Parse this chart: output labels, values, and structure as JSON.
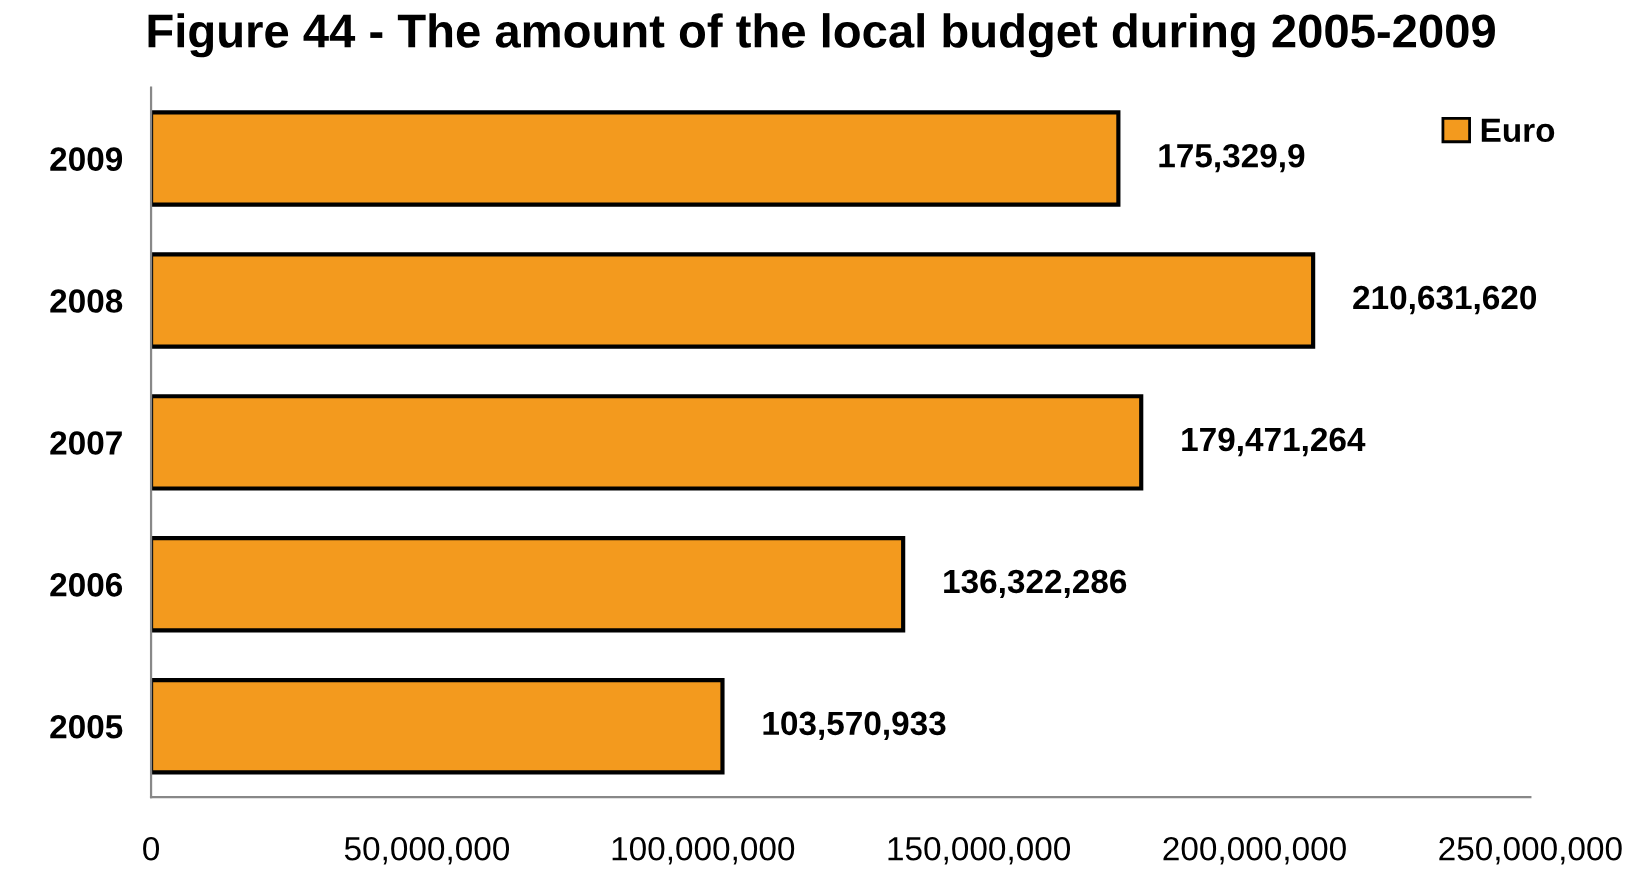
{
  "chart_data": {
    "type": "bar",
    "orientation": "horizontal",
    "title": "Figure 44 - The amount of the local budget during 2005-2009",
    "categories": [
      "2009",
      "2008",
      "2007",
      "2006",
      "2005"
    ],
    "series": [
      {
        "name": "Euro",
        "color": "#f39a1e",
        "values": [
          175329900,
          210631620,
          179471264,
          136322286,
          103570933
        ],
        "value_labels": [
          "175,329,9",
          "210,631,620",
          "179,471,264",
          "136,322,286",
          "103,570,933"
        ]
      }
    ],
    "xlim": [
      0,
      250000000
    ],
    "xticks": [
      0,
      {
        "value": 50000000,
        "label": "50,000,000"
      },
      {
        "value": 100000000,
        "label": "100,000,000"
      },
      {
        "value": 150000000,
        "label": "150,000,000"
      },
      {
        "value": 200000000,
        "label": "200,000,000"
      },
      {
        "value": 250000000,
        "label": "250,000,000"
      }
    ],
    "grid": false,
    "legend": "top right"
  }
}
